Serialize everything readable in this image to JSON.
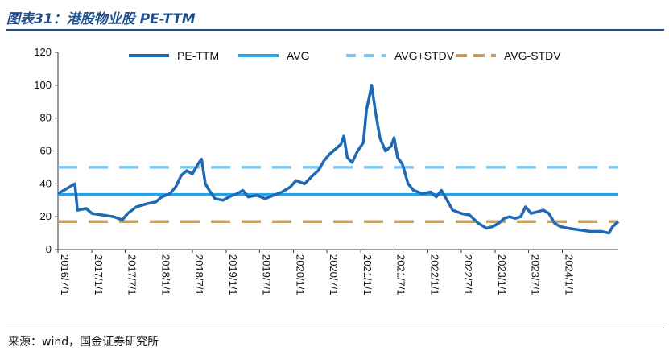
{
  "header": {
    "title": "图表31：港股物业股 PE-TTM"
  },
  "footer": {
    "source": "来源：wind，国金证券研究所"
  },
  "chart_data": {
    "type": "line",
    "ylim": [
      0,
      120
    ],
    "yticks": [
      0,
      20,
      40,
      60,
      80,
      100,
      120
    ],
    "xlim": [
      "2016-07-01",
      "2024-10-31"
    ],
    "xticks": [
      "2016/7/1",
      "2017/1/1",
      "2017/7/1",
      "2018/1/1",
      "2018/7/1",
      "2019/1/1",
      "2019/7/1",
      "2020/1/1",
      "2020/7/1",
      "2021/1/1",
      "2021/7/1",
      "2022/1/1",
      "2022/7/1",
      "2023/1/1",
      "2023/7/1",
      "2024/1/1"
    ],
    "grid": false,
    "legend_position": "top",
    "series": [
      {
        "name": "PE-TTM",
        "color": "#1f68b3",
        "style": "solid",
        "points": [
          [
            "2016-07-01",
            34
          ],
          [
            "2016-08-01",
            36
          ],
          [
            "2016-09-01",
            38
          ],
          [
            "2016-10-01",
            40
          ],
          [
            "2016-10-15",
            24
          ],
          [
            "2016-12-01",
            25
          ],
          [
            "2017-01-01",
            22
          ],
          [
            "2017-03-01",
            21
          ],
          [
            "2017-05-01",
            20
          ],
          [
            "2017-06-15",
            18
          ],
          [
            "2017-07-15",
            22
          ],
          [
            "2017-09-01",
            26
          ],
          [
            "2017-11-01",
            28
          ],
          [
            "2017-12-15",
            29
          ],
          [
            "2018-01-15",
            32
          ],
          [
            "2018-03-01",
            34
          ],
          [
            "2018-04-01",
            38
          ],
          [
            "2018-05-01",
            45
          ],
          [
            "2018-06-01",
            48
          ],
          [
            "2018-07-01",
            46
          ],
          [
            "2018-08-01",
            52
          ],
          [
            "2018-08-20",
            55
          ],
          [
            "2018-09-10",
            40
          ],
          [
            "2018-10-01",
            36
          ],
          [
            "2018-11-01",
            31
          ],
          [
            "2018-12-15",
            30
          ],
          [
            "2019-01-15",
            32
          ],
          [
            "2019-03-01",
            34
          ],
          [
            "2019-04-01",
            36
          ],
          [
            "2019-05-01",
            32
          ],
          [
            "2019-06-15",
            33
          ],
          [
            "2019-08-01",
            31
          ],
          [
            "2019-09-15",
            33
          ],
          [
            "2019-11-01",
            35
          ],
          [
            "2019-12-15",
            38
          ],
          [
            "2020-01-15",
            42
          ],
          [
            "2020-03-01",
            40
          ],
          [
            "2020-04-15",
            45
          ],
          [
            "2020-05-15",
            48
          ],
          [
            "2020-06-15",
            54
          ],
          [
            "2020-07-15",
            58
          ],
          [
            "2020-08-15",
            61
          ],
          [
            "2020-09-15",
            64
          ],
          [
            "2020-10-01",
            69
          ],
          [
            "2020-10-20",
            56
          ],
          [
            "2020-11-15",
            53
          ],
          [
            "2020-12-15",
            60
          ],
          [
            "2021-01-15",
            65
          ],
          [
            "2021-02-01",
            85
          ],
          [
            "2021-02-20",
            95
          ],
          [
            "2021-03-01",
            100
          ],
          [
            "2021-03-20",
            85
          ],
          [
            "2021-04-15",
            68
          ],
          [
            "2021-05-15",
            60
          ],
          [
            "2021-06-15",
            63
          ],
          [
            "2021-07-01",
            68
          ],
          [
            "2021-07-20",
            56
          ],
          [
            "2021-08-15",
            52
          ],
          [
            "2021-09-15",
            40
          ],
          [
            "2021-10-15",
            36
          ],
          [
            "2021-12-01",
            34
          ],
          [
            "2022-01-15",
            35
          ],
          [
            "2022-02-15",
            32
          ],
          [
            "2022-03-15",
            36
          ],
          [
            "2022-04-15",
            30
          ],
          [
            "2022-05-15",
            24
          ],
          [
            "2022-07-01",
            22
          ],
          [
            "2022-08-15",
            21
          ],
          [
            "2022-10-01",
            16
          ],
          [
            "2022-11-15",
            13
          ],
          [
            "2022-12-20",
            14
          ],
          [
            "2023-01-20",
            16
          ],
          [
            "2023-02-20",
            19
          ],
          [
            "2023-03-20",
            20
          ],
          [
            "2023-04-20",
            19
          ],
          [
            "2023-05-20",
            20
          ],
          [
            "2023-06-15",
            26
          ],
          [
            "2023-07-15",
            22
          ],
          [
            "2023-08-20",
            23
          ],
          [
            "2023-09-20",
            24
          ],
          [
            "2023-10-20",
            22
          ],
          [
            "2023-11-20",
            16
          ],
          [
            "2023-12-20",
            14
          ],
          [
            "2024-02-01",
            13
          ],
          [
            "2024-04-01",
            12
          ],
          [
            "2024-06-01",
            11
          ],
          [
            "2024-08-01",
            11
          ],
          [
            "2024-09-10",
            10
          ],
          [
            "2024-10-01",
            14
          ],
          [
            "2024-10-31",
            17
          ]
        ]
      },
      {
        "name": "AVG",
        "color": "#2aa3e6",
        "style": "solid",
        "value": 33.5
      },
      {
        "name": "AVG+STDV",
        "color": "#7cc6f2",
        "style": "dashed",
        "value": 50
      },
      {
        "name": "AVG-STDV",
        "color": "#c4a267",
        "style": "dashed",
        "value": 17
      }
    ]
  }
}
